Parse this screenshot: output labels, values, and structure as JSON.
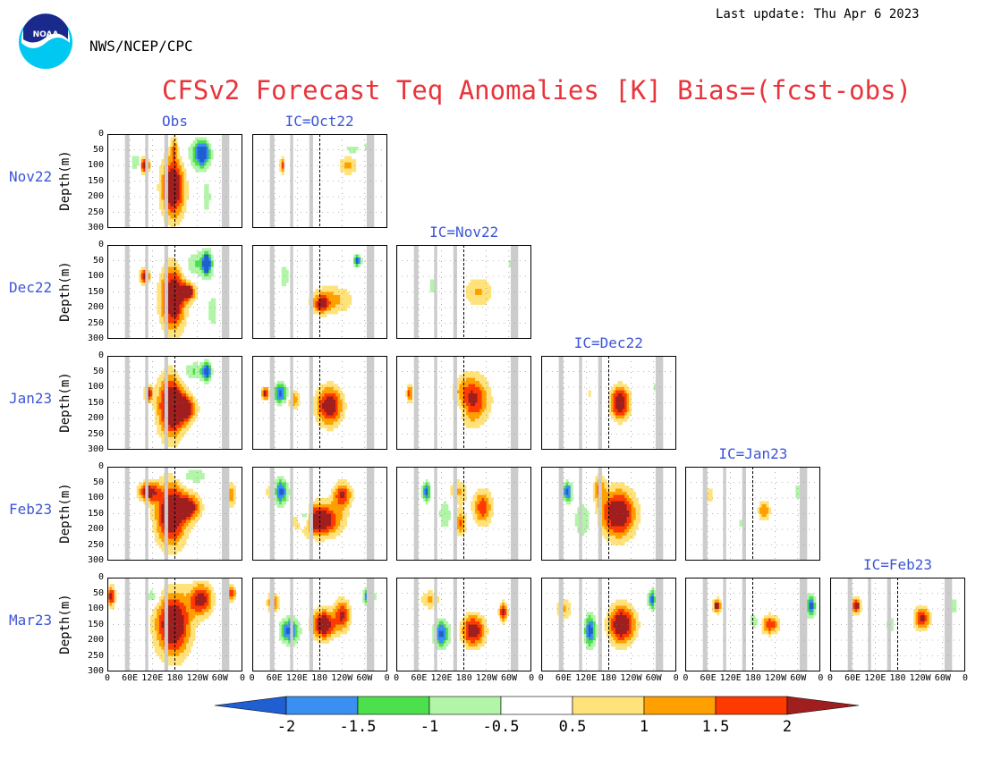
{
  "header": {
    "last_update": "Last update: Thu Apr  6 2023",
    "agency": "NWS/NCEP/CPC",
    "logo_text": "NOAA",
    "title": "CFSv2 Forecast Teq Anomalies [K] Bias=(fcst-obs)"
  },
  "colors": {
    "title": "#e8343a",
    "label_blue": "#3b55d9",
    "land_mask": "#cccccc",
    "levels": [
      "#1f5fd1",
      "#3b8ff0",
      "#4de04d",
      "#b2f5a8",
      "#ffffff",
      "#ffe37a",
      "#ffa000",
      "#ff3a00",
      "#a01e1e"
    ]
  },
  "chart_data": {
    "type": "heatmap",
    "description_axes": "longitude vs depth Hovmoller-style panels",
    "xlabel": "",
    "ylabel": "Depth(m)",
    "x_ticks": [
      "0",
      "60E",
      "120E",
      "180",
      "120W",
      "60W",
      "0"
    ],
    "x_range_deg": [
      0,
      360
    ],
    "y_ticks": [
      "0",
      "50",
      "100",
      "150",
      "200",
      "250",
      "300"
    ],
    "y_range": [
      0,
      300
    ],
    "lead_months": [
      "Nov22",
      "Dec22",
      "Jan23",
      "Feb23",
      "Mar23"
    ],
    "columns": [
      "Obs",
      "IC=Oct22",
      "IC=Nov22",
      "IC=Dec22",
      "IC=Jan23",
      "IC=Feb23"
    ],
    "colorbar": {
      "ticks": [
        "-2",
        "-1.5",
        "-1",
        "-0.5",
        "0.5",
        "1",
        "1.5",
        "2"
      ],
      "levels": [
        -2,
        -1.5,
        -1,
        -0.5,
        0.5,
        1,
        1.5,
        2
      ]
    },
    "panels": [
      {
        "row": 0,
        "col": 0,
        "blobs": [
          {
            "lon": 175,
            "depth": 170,
            "rl": 30,
            "rd": 95,
            "v": 2.2
          },
          {
            "lon": 178,
            "depth": 40,
            "rl": 8,
            "rd": 40,
            "v": 0.8
          },
          {
            "lon": 240,
            "depth": 70,
            "rl": 30,
            "rd": 55,
            "v": -0.8
          },
          {
            "lon": 255,
            "depth": 60,
            "rl": 18,
            "rd": 35,
            "v": -1.7
          },
          {
            "lon": 100,
            "depth": 100,
            "rl": 12,
            "rd": 25,
            "v": 1.8
          },
          {
            "lon": 75,
            "depth": 90,
            "rl": 12,
            "rd": 30,
            "v": -0.7
          },
          {
            "lon": 265,
            "depth": 200,
            "rl": 12,
            "rd": 60,
            "v": -0.6
          }
        ]
      },
      {
        "row": 0,
        "col": 1,
        "blobs": [
          {
            "lon": 255,
            "depth": 100,
            "rl": 25,
            "rd": 30,
            "v": 0.9
          },
          {
            "lon": 80,
            "depth": 100,
            "rl": 5,
            "rd": 25,
            "v": 1.6
          },
          {
            "lon": 265,
            "depth": 50,
            "rl": 25,
            "rd": 15,
            "v": -0.6
          },
          {
            "lon": 305,
            "depth": 40,
            "rl": 8,
            "rd": 18,
            "v": -0.6
          }
        ]
      },
      {
        "row": 1,
        "col": 0,
        "blobs": [
          {
            "lon": 175,
            "depth": 170,
            "rl": 32,
            "rd": 100,
            "v": 2.2
          },
          {
            "lon": 215,
            "depth": 150,
            "rl": 20,
            "rd": 25,
            "v": 1.8
          },
          {
            "lon": 240,
            "depth": 60,
            "rl": 40,
            "rd": 40,
            "v": -0.8
          },
          {
            "lon": 265,
            "depth": 60,
            "rl": 12,
            "rd": 40,
            "v": -1.8
          },
          {
            "lon": 100,
            "depth": 100,
            "rl": 12,
            "rd": 25,
            "v": 1.8
          },
          {
            "lon": 280,
            "depth": 210,
            "rl": 15,
            "rd": 60,
            "v": -0.6
          }
        ]
      },
      {
        "row": 1,
        "col": 1,
        "blobs": [
          {
            "lon": 210,
            "depth": 175,
            "rl": 60,
            "rd": 45,
            "v": 0.9
          },
          {
            "lon": 185,
            "depth": 190,
            "rl": 18,
            "rd": 25,
            "v": 1.3
          },
          {
            "lon": 85,
            "depth": 100,
            "rl": 12,
            "rd": 40,
            "v": -0.7
          },
          {
            "lon": 280,
            "depth": 50,
            "rl": 10,
            "rd": 20,
            "v": -1.6
          }
        ]
      },
      {
        "row": 1,
        "col": 2,
        "blobs": [
          {
            "lon": 220,
            "depth": 150,
            "rl": 40,
            "rd": 50,
            "v": 0.8
          },
          {
            "lon": 95,
            "depth": 130,
            "rl": 10,
            "rd": 30,
            "v": -0.6
          },
          {
            "lon": 305,
            "depth": 60,
            "rl": 10,
            "rd": 20,
            "v": -0.6
          }
        ]
      },
      {
        "row": 2,
        "col": 0,
        "blobs": [
          {
            "lon": 170,
            "depth": 160,
            "rl": 35,
            "rd": 100,
            "v": 2.2
          },
          {
            "lon": 205,
            "depth": 170,
            "rl": 30,
            "rd": 40,
            "v": 1.9
          },
          {
            "lon": 230,
            "depth": 50,
            "rl": 40,
            "rd": 30,
            "v": -0.8
          },
          {
            "lon": 265,
            "depth": 50,
            "rl": 10,
            "rd": 30,
            "v": -1.7
          },
          {
            "lon": 110,
            "depth": 120,
            "rl": 10,
            "rd": 25,
            "v": 1.7
          }
        ]
      },
      {
        "row": 2,
        "col": 1,
        "blobs": [
          {
            "lon": 205,
            "depth": 160,
            "rl": 35,
            "rd": 60,
            "v": 1.9
          },
          {
            "lon": 75,
            "depth": 120,
            "rl": 18,
            "rd": 30,
            "v": -1.7
          },
          {
            "lon": 110,
            "depth": 140,
            "rl": 15,
            "rd": 35,
            "v": 1.0
          },
          {
            "lon": 35,
            "depth": 120,
            "rl": 10,
            "rd": 20,
            "v": 1.8
          }
        ]
      },
      {
        "row": 2,
        "col": 2,
        "blobs": [
          {
            "lon": 200,
            "depth": 140,
            "rl": 45,
            "rd": 75,
            "v": 1.7
          },
          {
            "lon": 170,
            "depth": 170,
            "rl": 25,
            "rd": 40,
            "v": -0.6
          },
          {
            "lon": 35,
            "depth": 120,
            "rl": 8,
            "rd": 25,
            "v": 1.4
          }
        ]
      },
      {
        "row": 2,
        "col": 3,
        "blobs": [
          {
            "lon": 210,
            "depth": 150,
            "rl": 25,
            "rd": 50,
            "v": 2.1
          },
          {
            "lon": 130,
            "depth": 120,
            "rl": 5,
            "rd": 10,
            "v": 0.8
          },
          {
            "lon": 310,
            "depth": 100,
            "rl": 12,
            "rd": 25,
            "v": -0.6
          }
        ]
      },
      {
        "row": 3,
        "col": 0,
        "blobs": [
          {
            "lon": 170,
            "depth": 150,
            "rl": 40,
            "rd": 100,
            "v": 2.2
          },
          {
            "lon": 110,
            "depth": 80,
            "rl": 25,
            "rd": 30,
            "v": 1.8
          },
          {
            "lon": 220,
            "depth": 130,
            "rl": 30,
            "rd": 40,
            "v": 1.5
          },
          {
            "lon": 230,
            "depth": 30,
            "rl": 40,
            "rd": 25,
            "v": -0.7
          },
          {
            "lon": 330,
            "depth": 90,
            "rl": 15,
            "rd": 40,
            "v": 0.9
          }
        ]
      },
      {
        "row": 3,
        "col": 1,
        "blobs": [
          {
            "lon": 180,
            "depth": 170,
            "rl": 55,
            "rd": 50,
            "v": 2.1
          },
          {
            "lon": 75,
            "depth": 80,
            "rl": 20,
            "rd": 40,
            "v": -1.7
          },
          {
            "lon": 140,
            "depth": 160,
            "rl": 15,
            "rd": 35,
            "v": -1.6
          },
          {
            "lon": 240,
            "depth": 90,
            "rl": 25,
            "rd": 40,
            "v": 1.5
          },
          {
            "lon": 50,
            "depth": 80,
            "rl": 15,
            "rd": 30,
            "v": 0.8
          }
        ]
      },
      {
        "row": 3,
        "col": 2,
        "blobs": [
          {
            "lon": 230,
            "depth": 130,
            "rl": 25,
            "rd": 55,
            "v": 1.4
          },
          {
            "lon": 80,
            "depth": 80,
            "rl": 10,
            "rd": 30,
            "v": -1.8
          },
          {
            "lon": 170,
            "depth": 180,
            "rl": 15,
            "rd": 40,
            "v": 1.2
          },
          {
            "lon": 130,
            "depth": 150,
            "rl": 20,
            "rd": 60,
            "v": -0.6
          },
          {
            "lon": 165,
            "depth": 80,
            "rl": 25,
            "rd": 40,
            "v": 0.8
          }
        ]
      },
      {
        "row": 3,
        "col": 3,
        "blobs": [
          {
            "lon": 205,
            "depth": 150,
            "rl": 45,
            "rd": 75,
            "v": 2.1
          },
          {
            "lon": 70,
            "depth": 80,
            "rl": 12,
            "rd": 30,
            "v": -1.7
          },
          {
            "lon": 110,
            "depth": 170,
            "rl": 25,
            "rd": 60,
            "v": -0.7
          },
          {
            "lon": 155,
            "depth": 70,
            "rl": 15,
            "rd": 50,
            "v": 1.0
          }
        ]
      },
      {
        "row": 3,
        "col": 4,
        "blobs": [
          {
            "lon": 210,
            "depth": 140,
            "rl": 15,
            "rd": 30,
            "v": 1.1
          },
          {
            "lon": 65,
            "depth": 90,
            "rl": 10,
            "rd": 20,
            "v": 0.8
          },
          {
            "lon": 300,
            "depth": 80,
            "rl": 12,
            "rd": 30,
            "v": -0.6
          },
          {
            "lon": 150,
            "depth": 180,
            "rl": 10,
            "rd": 20,
            "v": -0.6
          }
        ]
      },
      {
        "row": 4,
        "col": 0,
        "blobs": [
          {
            "lon": 175,
            "depth": 150,
            "rl": 45,
            "rd": 100,
            "v": 2.2
          },
          {
            "lon": 250,
            "depth": 70,
            "rl": 30,
            "rd": 50,
            "v": 1.7
          },
          {
            "lon": 120,
            "depth": 60,
            "rl": 20,
            "rd": 30,
            "v": -0.7
          },
          {
            "lon": 10,
            "depth": 60,
            "rl": 10,
            "rd": 30,
            "v": 1.9
          },
          {
            "lon": 330,
            "depth": 50,
            "rl": 12,
            "rd": 25,
            "v": 1.5
          }
        ]
      },
      {
        "row": 4,
        "col": 1,
        "blobs": [
          {
            "lon": 190,
            "depth": 150,
            "rl": 30,
            "rd": 45,
            "v": 2.1
          },
          {
            "lon": 100,
            "depth": 170,
            "rl": 25,
            "rd": 40,
            "v": -1.7
          },
          {
            "lon": 240,
            "depth": 120,
            "rl": 20,
            "rd": 50,
            "v": 1.5
          },
          {
            "lon": 55,
            "depth": 80,
            "rl": 15,
            "rd": 30,
            "v": 1.4
          },
          {
            "lon": 310,
            "depth": 60,
            "rl": 15,
            "rd": 25,
            "v": -1.5
          }
        ]
      },
      {
        "row": 4,
        "col": 2,
        "blobs": [
          {
            "lon": 205,
            "depth": 170,
            "rl": 30,
            "rd": 50,
            "v": 1.9
          },
          {
            "lon": 120,
            "depth": 180,
            "rl": 20,
            "rd": 45,
            "v": -1.6
          },
          {
            "lon": 90,
            "depth": 70,
            "rl": 25,
            "rd": 30,
            "v": 0.8
          },
          {
            "lon": 285,
            "depth": 110,
            "rl": 10,
            "rd": 30,
            "v": 1.7
          }
        ]
      },
      {
        "row": 4,
        "col": 3,
        "blobs": [
          {
            "lon": 215,
            "depth": 150,
            "rl": 35,
            "rd": 60,
            "v": 2.1
          },
          {
            "lon": 130,
            "depth": 170,
            "rl": 15,
            "rd": 50,
            "v": -1.7
          },
          {
            "lon": 60,
            "depth": 100,
            "rl": 20,
            "rd": 35,
            "v": 0.9
          },
          {
            "lon": 295,
            "depth": 70,
            "rl": 10,
            "rd": 30,
            "v": -1.6
          }
        ]
      },
      {
        "row": 4,
        "col": 4,
        "blobs": [
          {
            "lon": 225,
            "depth": 150,
            "rl": 25,
            "rd": 30,
            "v": 1.5
          },
          {
            "lon": 85,
            "depth": 90,
            "rl": 10,
            "rd": 20,
            "v": 1.9
          },
          {
            "lon": 335,
            "depth": 90,
            "rl": 12,
            "rd": 35,
            "v": -1.7
          },
          {
            "lon": 185,
            "depth": 140,
            "rl": 20,
            "rd": 30,
            "v": -0.6
          }
        ]
      },
      {
        "row": 4,
        "col": 5,
        "blobs": [
          {
            "lon": 245,
            "depth": 130,
            "rl": 20,
            "rd": 35,
            "v": 1.7
          },
          {
            "lon": 70,
            "depth": 90,
            "rl": 10,
            "rd": 25,
            "v": 2.0
          },
          {
            "lon": 160,
            "depth": 150,
            "rl": 10,
            "rd": 30,
            "v": -0.7
          },
          {
            "lon": 330,
            "depth": 90,
            "rl": 10,
            "rd": 25,
            "v": -0.6
          }
        ]
      }
    ]
  }
}
